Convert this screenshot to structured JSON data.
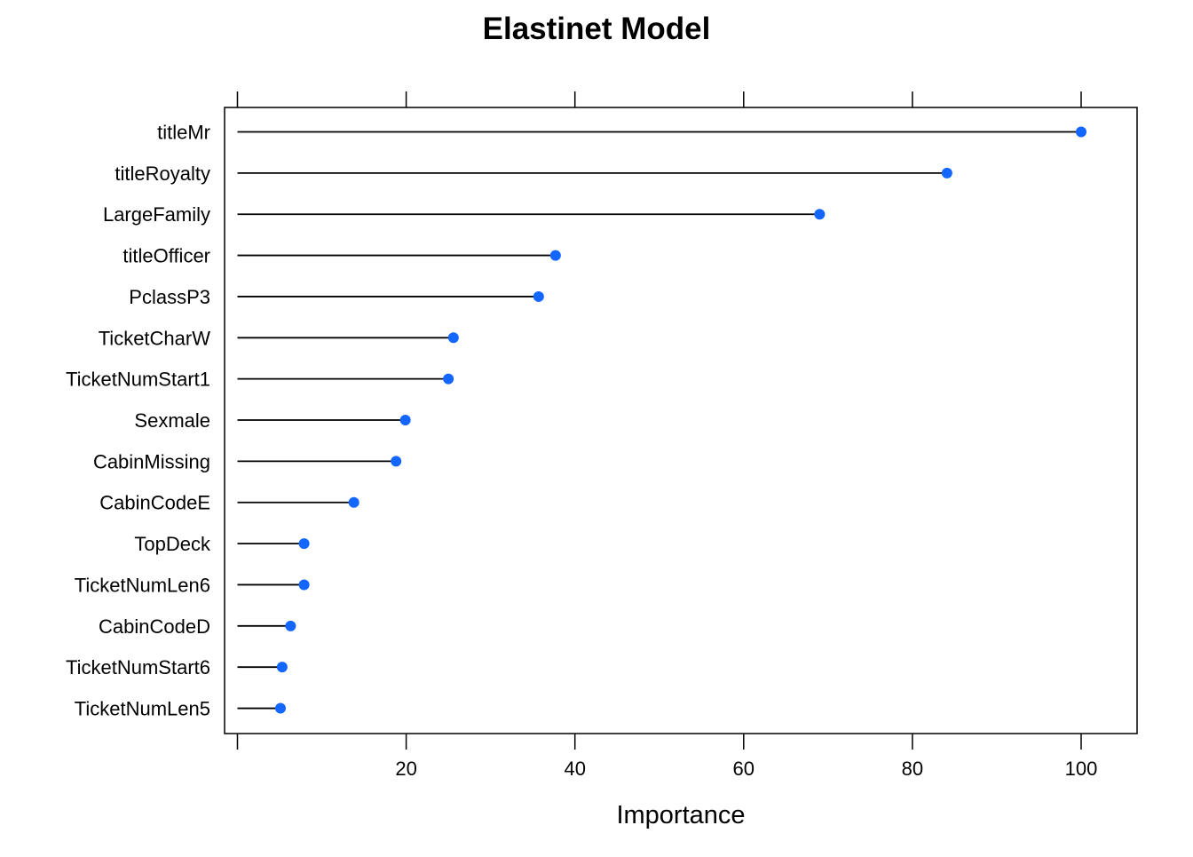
{
  "chart_data": {
    "type": "dotplot",
    "title": "Elastinet Model",
    "xlabel": "Importance",
    "ylabel": "",
    "xlim": [
      -1,
      106.5
    ],
    "x_ticks": [
      0,
      20,
      40,
      60,
      80,
      100
    ],
    "x_tick_labels": [
      "",
      "20",
      "40",
      "60",
      "80",
      "100"
    ],
    "grid": false,
    "point_color": "#1366FF",
    "line_color": "#000000",
    "series": [
      {
        "categories": [
          "titleMr",
          "titleRoyalty",
          "LargeFamily",
          "titleOfficer",
          "PclassP3",
          "TicketCharW",
          "TicketNumStart1",
          "Sexmale",
          "CabinMissing",
          "CabinCodeE",
          "TopDeck",
          "TicketNumLen6",
          "CabinCodeD",
          "TicketNumStart6",
          "TicketNumLen5"
        ],
        "values": [
          100.0,
          84.1,
          69.0,
          37.7,
          35.7,
          25.6,
          25.0,
          19.9,
          18.8,
          13.8,
          7.9,
          7.9,
          6.3,
          5.3,
          5.1
        ]
      }
    ]
  }
}
